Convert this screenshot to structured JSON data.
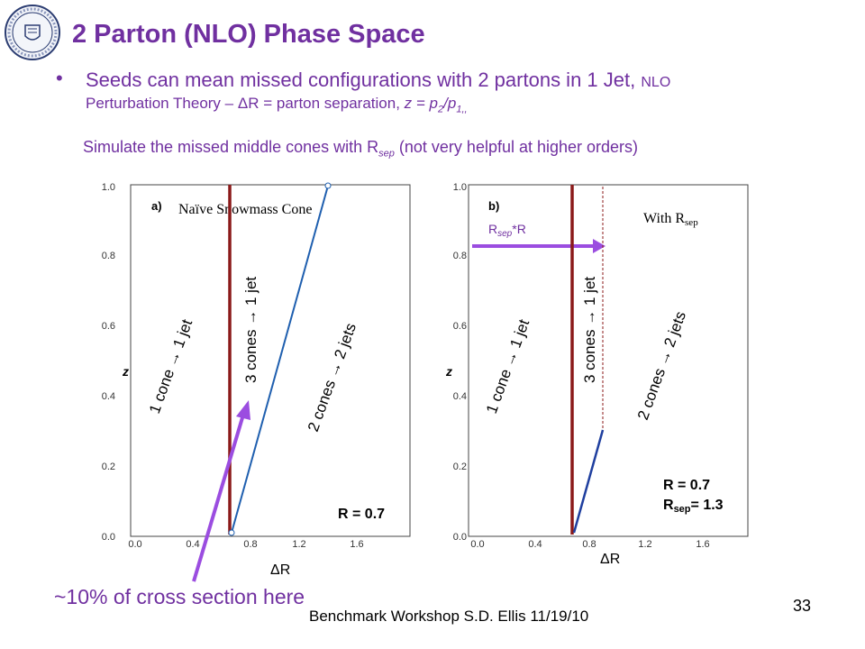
{
  "title": "2 Parton (NLO) Phase Space",
  "bullet": {
    "line1_a": "Seeds can mean missed configurations with 2 partons in 1 Jet,",
    "line1_b": "NLO",
    "line2_a": "Perturbation Theory –",
    "line2_dr": "ΔR",
    "line2_b": "= parton separation,",
    "line2_z": "z = p",
    "line2_sub2": "2",
    "line2_slash": "/p",
    "line2_sub1": "1,,"
  },
  "simulate": {
    "text_a": "Simulate the missed middle cones with R",
    "text_sub": "sep",
    "text_b": "(not very helpful at higher orders)"
  },
  "plot_a": {
    "panel": "a)",
    "label": "Naïve Snowmass Cone",
    "ylabel": "z",
    "xticks": [
      "0.0",
      "0.4",
      "0.8",
      "1.2",
      "1.6"
    ],
    "yticks": [
      "0.0",
      "0.2",
      "0.4",
      "0.6",
      "0.8",
      "1.0"
    ],
    "region1": "1 cone → 1 jet",
    "region2": "3 cones → 1 jet",
    "region3": "2 cones → 2 jets",
    "rlabel": "R = 0.7",
    "xlabel": "ΔR"
  },
  "plot_b": {
    "panel": "b)",
    "label_a": "With R",
    "label_sub": "sep",
    "rsep_a": "R",
    "rsep_sub": "sep",
    "rsep_b": "*R",
    "ylabel": "z",
    "xticks": [
      "0.0",
      "0.4",
      "0.8",
      "1.2",
      "1.6"
    ],
    "yticks": [
      "0.0",
      "0.2",
      "0.4",
      "0.6",
      "0.8",
      "1.0"
    ],
    "region1": "1 cone → 1 jet",
    "region2": "3 cones → 1 jet",
    "region3": "2 cones → 2 jets",
    "rlabel1": "R = 0.7",
    "rlabel2_a": "R",
    "rlabel2_sub": "sep",
    "rlabel2_b": "= 1.3",
    "xlabel": "ΔR"
  },
  "note": "~10% of cross section here",
  "footer": "Benchmark Workshop   S.D. Ellis  11/19/10",
  "page_number": "33",
  "colors": {
    "accent": "#7030A0",
    "arrow": "#9B4DE0",
    "cone_line": "#8B1A1A",
    "blue_line": "#1F5FAF"
  }
}
